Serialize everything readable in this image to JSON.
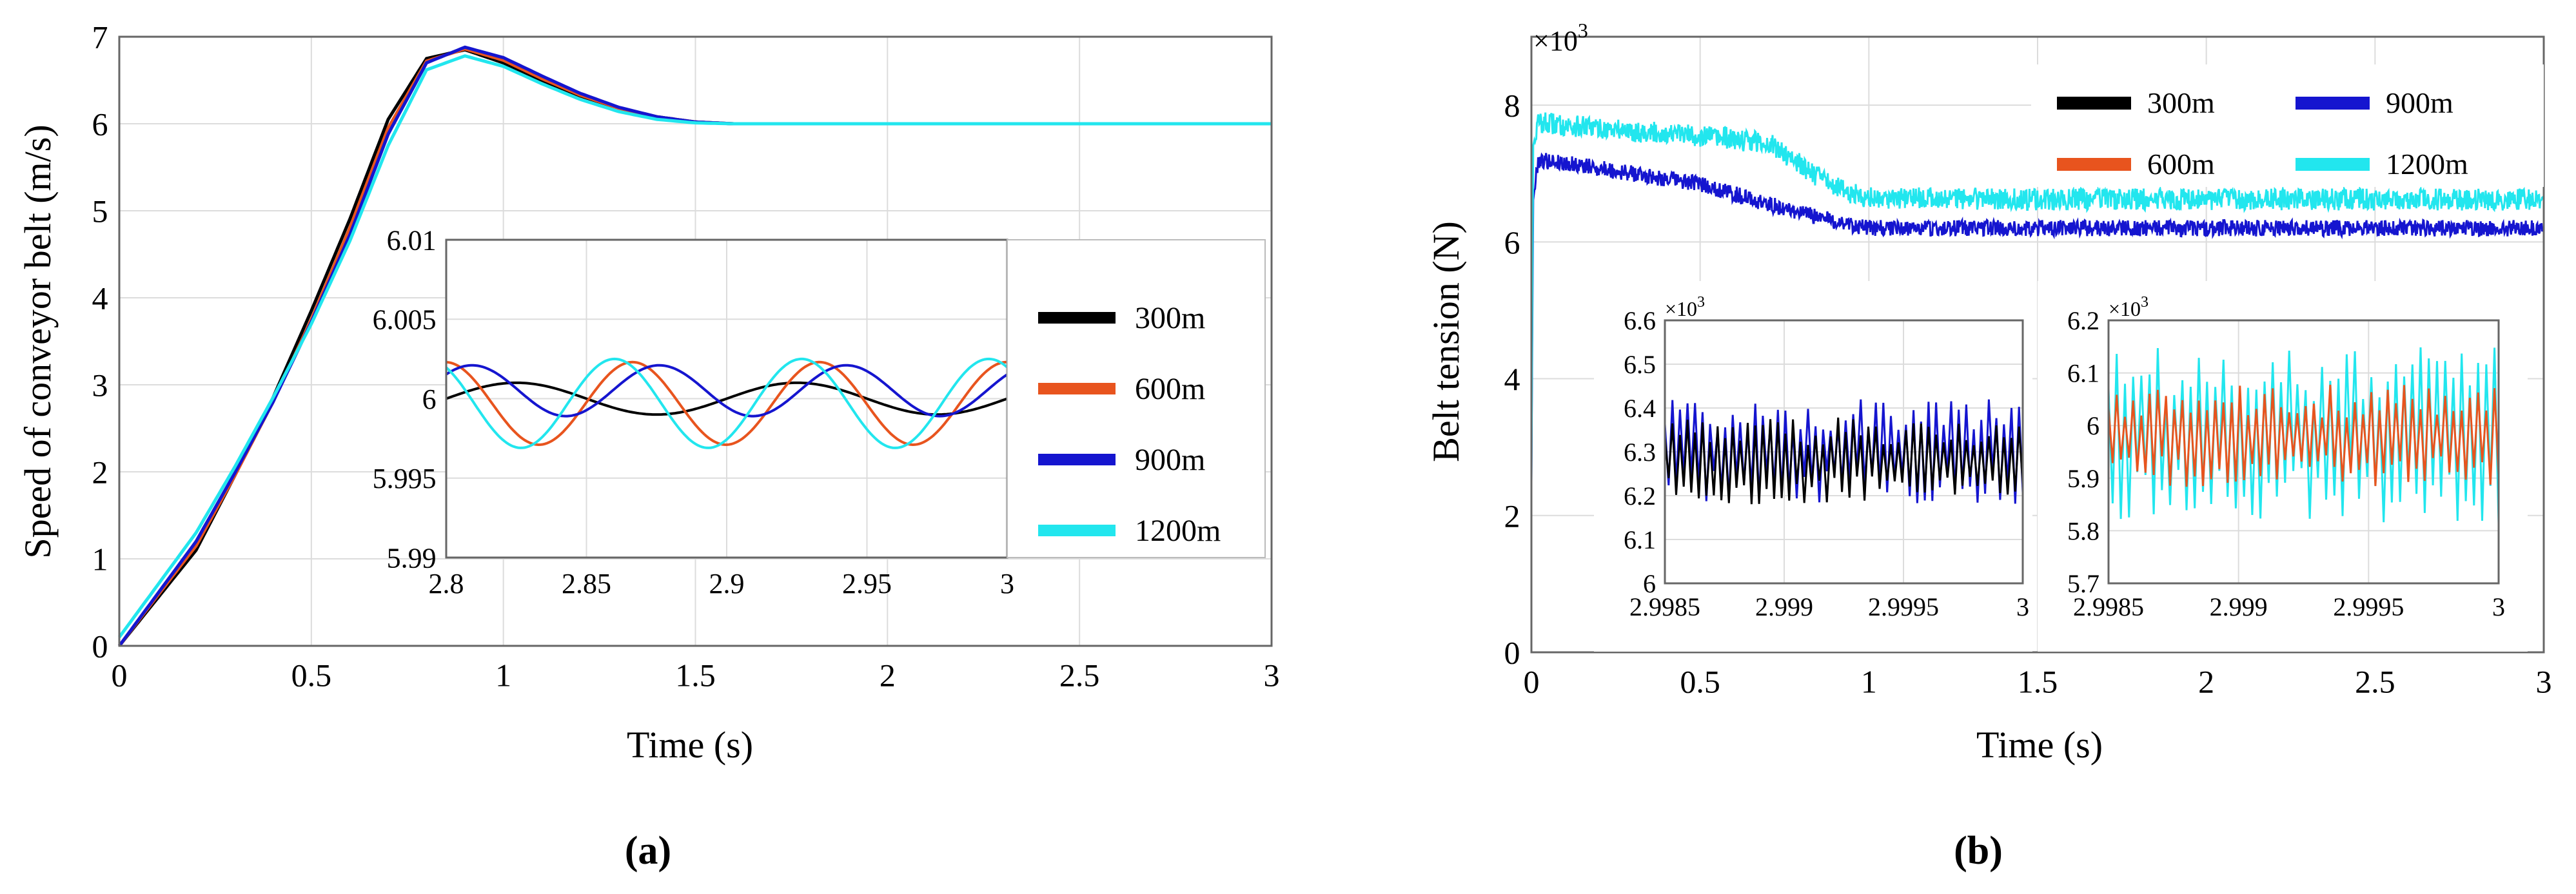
{
  "panels": [
    {
      "label": "(a)",
      "chart_data": {
        "type": "line",
        "title": "",
        "xlabel": "Time (s)",
        "ylabel": "Speed of conveyor belt (m/s)",
        "xlim": [
          0,
          3
        ],
        "ylim": [
          0,
          7
        ],
        "xticks": [
          "0",
          "0.5",
          "1",
          "1.5",
          "2",
          "2.5",
          "3"
        ],
        "yticks": [
          "0",
          "1",
          "2",
          "3",
          "4",
          "5",
          "6",
          "7"
        ],
        "grid": true,
        "series": [
          {
            "name": "300m",
            "color": "#000000",
            "x": [
              0,
              0.1,
              0.2,
              0.3,
              0.4,
              0.5,
              0.6,
              0.7,
              0.8,
              0.9,
              1.0,
              1.1,
              1.2,
              1.3,
              1.4,
              1.5,
              1.6,
              1.8,
              2.0,
              2.5,
              3.0
            ],
            "y": [
              0.0,
              0.55,
              1.1,
              1.95,
              2.85,
              3.85,
              4.9,
              6.05,
              6.75,
              6.85,
              6.7,
              6.5,
              6.32,
              6.18,
              6.08,
              6.02,
              6.0,
              6.0,
              6.0,
              6.0,
              6.0
            ]
          },
          {
            "name": "600m",
            "color": "#e8541e",
            "x": [
              0,
              0.1,
              0.2,
              0.3,
              0.4,
              0.5,
              0.6,
              0.7,
              0.8,
              0.9,
              1.0,
              1.1,
              1.2,
              1.3,
              1.4,
              1.5,
              1.6,
              1.8,
              2.0,
              2.5,
              3.0
            ],
            "y": [
              0.0,
              0.58,
              1.15,
              1.95,
              2.8,
              3.75,
              4.8,
              5.95,
              6.72,
              6.86,
              6.73,
              6.52,
              6.33,
              6.18,
              6.08,
              6.02,
              6.0,
              6.0,
              6.0,
              6.0,
              6.0
            ]
          },
          {
            "name": "900m",
            "color": "#1515cf",
            "x": [
              0,
              0.1,
              0.2,
              0.3,
              0.4,
              0.5,
              0.6,
              0.7,
              0.8,
              0.9,
              1.0,
              1.1,
              1.2,
              1.3,
              1.4,
              1.5,
              1.6,
              1.8,
              2.0,
              2.5,
              3.0
            ],
            "y": [
              0.0,
              0.6,
              1.2,
              1.98,
              2.8,
              3.72,
              4.72,
              5.88,
              6.7,
              6.88,
              6.76,
              6.55,
              6.35,
              6.19,
              6.08,
              6.02,
              6.0,
              6.0,
              6.0,
              6.0,
              6.0
            ]
          },
          {
            "name": "1200m",
            "color": "#22e6ee",
            "x": [
              0,
              0.1,
              0.2,
              0.3,
              0.4,
              0.5,
              0.6,
              0.7,
              0.8,
              0.9,
              1.0,
              1.1,
              1.2,
              1.3,
              1.4,
              1.5,
              1.6,
              1.8,
              2.0,
              2.5,
              3.0
            ],
            "y": [
              0.1,
              0.7,
              1.3,
              2.05,
              2.85,
              3.7,
              4.65,
              5.75,
              6.62,
              6.78,
              6.66,
              6.46,
              6.28,
              6.14,
              6.05,
              6.01,
              6.0,
              6.0,
              6.0,
              6.0,
              6.0
            ]
          }
        ],
        "legend": {
          "placement": "right-inside",
          "entries": [
            "300m",
            "600m",
            "900m",
            "1200m"
          ]
        },
        "inset": {
          "xlim": [
            2.8,
            3.0
          ],
          "ylim": [
            5.99,
            6.01
          ],
          "xticks": [
            "2.8",
            "2.85",
            "2.9",
            "2.95",
            "3"
          ],
          "yticks": [
            "5.99",
            "5.995",
            "6",
            "6.005",
            "6.01"
          ],
          "series": [
            {
              "name": "300m",
              "color": "#000000",
              "mean": 6.0,
              "amp": 0.001,
              "period": 0.1,
              "phase": 0.0
            },
            {
              "name": "600m",
              "color": "#e8541e",
              "mean": 5.9997,
              "amp": 0.0026,
              "period": 0.0667,
              "phase": 1.6
            },
            {
              "name": "900m",
              "color": "#1515cf",
              "mean": 6.0005,
              "amp": 0.0016,
              "period": 0.0667,
              "phase": 0.7
            },
            {
              "name": "1200m",
              "color": "#22e6ee",
              "mean": 5.9997,
              "amp": 0.0028,
              "period": 0.0667,
              "phase": 2.2
            }
          ]
        }
      }
    },
    {
      "label": "(b)",
      "chart_data": {
        "type": "line",
        "title": "",
        "xlabel": "Time (s)",
        "ylabel": "Belt tension (N)",
        "exponent": "×10",
        "exponent_power": "3",
        "xlim": [
          0,
          3
        ],
        "ylim": [
          0,
          9
        ],
        "xticks": [
          "0",
          "0.5",
          "1",
          "1.5",
          "2",
          "2.5",
          "3"
        ],
        "yticks": [
          "0",
          "2",
          "4",
          "6",
          "8"
        ],
        "grid": true,
        "series": [
          {
            "name": "300m",
            "color": "#000000",
            "x": [],
            "y": []
          },
          {
            "name": "600m",
            "color": "#e8541e",
            "x": [],
            "y": []
          },
          {
            "name": "900m",
            "color": "#1515cf",
            "x": [
              0,
              0.005,
              0.02,
              0.1,
              0.3,
              0.5,
              0.7,
              0.9,
              1.0,
              1.5,
              2.0,
              2.5,
              3.0
            ],
            "y": [
              2.5,
              6.6,
              7.2,
              7.15,
              7.0,
              6.85,
              6.55,
              6.3,
              6.2,
              6.2,
              6.2,
              6.2,
              6.2
            ],
            "noise": 0.12
          },
          {
            "name": "1200m",
            "color": "#22e6ee",
            "x": [
              0,
              0.005,
              0.02,
              0.1,
              0.3,
              0.5,
              0.7,
              0.75,
              0.85,
              0.95,
              1.0,
              1.5,
              2.0,
              2.5,
              3.0
            ],
            "y": [
              2.5,
              7.4,
              7.75,
              7.7,
              7.62,
              7.55,
              7.45,
              7.3,
              6.95,
              6.7,
              6.65,
              6.62,
              6.62,
              6.62,
              6.62
            ],
            "noise": 0.16
          }
        ],
        "legend": {
          "placement": "top-right",
          "entries": [
            "300m",
            "900m",
            "600m",
            "1200m"
          ]
        },
        "insets": [
          {
            "exponent": "×10",
            "exponent_power": "3",
            "xlim": [
              2.9985,
              3.0
            ],
            "ylim": [
              6.0,
              6.6
            ],
            "xticks": [
              "2.9985",
              "2.999",
              "2.9995",
              "3"
            ],
            "yticks": [
              "6",
              "6.1",
              "6.2",
              "6.3",
              "6.4",
              "6.5",
              "6.6"
            ],
            "series": [
              {
                "name": "300m",
                "color": "#000000",
                "mean": 6.28,
                "amp": 0.1
              },
              {
                "name": "900m",
                "color": "#1515cf",
                "mean": 6.3,
                "amp": 0.12
              }
            ]
          },
          {
            "exponent": "×10",
            "exponent_power": "3",
            "xlim": [
              2.9985,
              3.0
            ],
            "ylim": [
              5.7,
              6.2
            ],
            "xticks": [
              "2.9985",
              "2.999",
              "2.9995",
              "3"
            ],
            "yticks": [
              "5.7",
              "5.8",
              "5.9",
              "6",
              "6.1",
              "6.2"
            ],
            "series": [
              {
                "name": "600m",
                "color": "#e8541e",
                "mean": 5.98,
                "amp": 0.1
              },
              {
                "name": "1200m",
                "color": "#22e6ee",
                "mean": 5.98,
                "amp": 0.17
              }
            ]
          }
        ]
      }
    }
  ]
}
